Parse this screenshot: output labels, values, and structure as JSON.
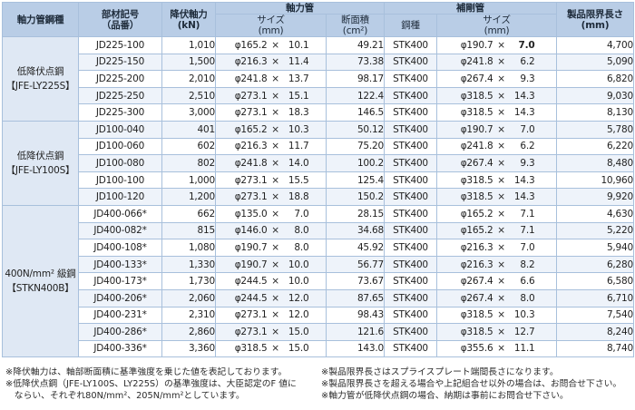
{
  "header": {
    "col_steel_type": "軸力管鋼種",
    "col_part_no": "部材記号",
    "col_part_no_sub": "（品番）",
    "col_yield": "降伏軸力",
    "col_yield_unit": "(kN)",
    "grp_axial": "軸力管",
    "grp_reinf": "補剛管",
    "col_axial_size": "サイズ",
    "col_axial_size_unit": "(mm)",
    "col_area": "断面積",
    "col_area_unit": "(cm²)",
    "col_reinf_steel": "鋼種",
    "col_reinf_size": "サイズ",
    "col_reinf_size_unit": "(mm)",
    "col_maxlen": "製品限界長さ",
    "col_maxlen_unit": "(mm)"
  },
  "groups": [
    {
      "label1": "低降伏点鋼",
      "label2": "【JFE-LY225S】",
      "rows": [
        {
          "part": "JD225-100",
          "yield": "1,010",
          "ax_d": "φ165.2",
          "ax_t": "10.1",
          "area": "49.21",
          "steel": "STK400",
          "rf_d": "φ190.7",
          "rf_t": "7.0",
          "rf_bold": true,
          "len": "4,700"
        },
        {
          "part": "JD225-150",
          "yield": "1,500",
          "ax_d": "φ216.3",
          "ax_t": "11.4",
          "area": "73.38",
          "steel": "STK400",
          "rf_d": "φ241.8",
          "rf_t": "6.2",
          "len": "5,090"
        },
        {
          "part": "JD225-200",
          "yield": "2,010",
          "ax_d": "φ241.8",
          "ax_t": "13.7",
          "area": "98.17",
          "steel": "STK400",
          "rf_d": "φ267.4",
          "rf_t": "9.3",
          "len": "6,820"
        },
        {
          "part": "JD225-250",
          "yield": "2,510",
          "ax_d": "φ273.1",
          "ax_t": "15.1",
          "area": "122.4",
          "steel": "STK400",
          "rf_d": "φ318.5",
          "rf_t": "14.3",
          "len": "9,030"
        },
        {
          "part": "JD225-300",
          "yield": "3,000",
          "ax_d": "φ273.1",
          "ax_t": "18.3",
          "area": "146.5",
          "steel": "STK400",
          "rf_d": "φ318.5",
          "rf_t": "14.3",
          "len": "8,130"
        }
      ]
    },
    {
      "label1": "低降伏点鋼",
      "label2": "【JFE-LY100S】",
      "rows": [
        {
          "part": "JD100-040",
          "yield": "401",
          "ax_d": "φ165.2",
          "ax_t": "10.3",
          "area": "50.12",
          "steel": "STK400",
          "rf_d": "φ190.7",
          "rf_t": "7.0",
          "len": "5,780"
        },
        {
          "part": "JD100-060",
          "yield": "602",
          "ax_d": "φ216.3",
          "ax_t": "11.7",
          "area": "75.20",
          "steel": "STK400",
          "rf_d": "φ241.8",
          "rf_t": "6.2",
          "len": "6,220"
        },
        {
          "part": "JD100-080",
          "yield": "802",
          "ax_d": "φ241.8",
          "ax_t": "14.0",
          "area": "100.2",
          "steel": "STK400",
          "rf_d": "φ267.4",
          "rf_t": "9.3",
          "len": "8,480"
        },
        {
          "part": "JD100-100",
          "yield": "1,000",
          "ax_d": "φ273.1",
          "ax_t": "15.5",
          "area": "125.4",
          "steel": "STK400",
          "rf_d": "φ318.5",
          "rf_t": "14.3",
          "len": "10,960"
        },
        {
          "part": "JD100-120",
          "yield": "1,200",
          "ax_d": "φ273.1",
          "ax_t": "18.8",
          "area": "150.2",
          "steel": "STK400",
          "rf_d": "φ318.5",
          "rf_t": "14.3",
          "len": "9,920"
        }
      ]
    },
    {
      "label1": "400N/mm² 級鋼",
      "label2": "【STKN400B】",
      "rows": [
        {
          "part": "JD400-066*",
          "yield": "662",
          "ax_d": "φ135.0",
          "ax_t": "7.0",
          "area": "28.15",
          "steel": "STK400",
          "rf_d": "φ165.2",
          "rf_t": "7.1",
          "len": "4,630"
        },
        {
          "part": "JD400-082*",
          "yield": "815",
          "ax_d": "φ146.0",
          "ax_t": "8.0",
          "area": "34.68",
          "steel": "STK400",
          "rf_d": "φ165.2",
          "rf_t": "7.1",
          "len": "5,220"
        },
        {
          "part": "JD400-108*",
          "yield": "1,080",
          "ax_d": "φ190.7",
          "ax_t": "8.0",
          "area": "45.92",
          "steel": "STK400",
          "rf_d": "φ216.3",
          "rf_t": "7.0",
          "len": "5,940"
        },
        {
          "part": "JD400-133*",
          "yield": "1,330",
          "ax_d": "φ190.7",
          "ax_t": "10.0",
          "area": "56.77",
          "steel": "STK400",
          "rf_d": "φ216.3",
          "rf_t": "8.2",
          "len": "6,280"
        },
        {
          "part": "JD400-173*",
          "yield": "1,730",
          "ax_d": "φ244.5",
          "ax_t": "10.0",
          "area": "73.67",
          "steel": "STK400",
          "rf_d": "φ267.4",
          "rf_t": "6.6",
          "len": "6,580"
        },
        {
          "part": "JD400-206*",
          "yield": "2,060",
          "ax_d": "φ244.5",
          "ax_t": "12.0",
          "area": "87.65",
          "steel": "STK400",
          "rf_d": "φ267.4",
          "rf_t": "8.0",
          "len": "6,710"
        },
        {
          "part": "JD400-231*",
          "yield": "2,310",
          "ax_d": "φ273.1",
          "ax_t": "12.0",
          "area": "98.43",
          "steel": "STK400",
          "rf_d": "φ318.5",
          "rf_t": "10.3",
          "len": "7,540"
        },
        {
          "part": "JD400-286*",
          "yield": "2,860",
          "ax_d": "φ273.1",
          "ax_t": "15.0",
          "area": "121.6",
          "steel": "STK400",
          "rf_d": "φ318.5",
          "rf_t": "12.7",
          "len": "8,240"
        },
        {
          "part": "JD400-336*",
          "yield": "3,360",
          "ax_d": "φ318.5",
          "ax_t": "15.0",
          "area": "143.0",
          "steel": "STK400",
          "rf_d": "φ355.6",
          "rf_t": "11.1",
          "len": "8,740"
        }
      ]
    }
  ],
  "times_sign": "×",
  "notes": {
    "left": [
      "※降伏軸力は、軸部断面積に基準強度を乗じた値を表記しております。",
      "※低降伏点鋼（JFE-LY100S、LY225S）の基準強度は、大臣認定のF 値に",
      "　ならい、それぞれ80N/mm²、205N/mm²としています。"
    ],
    "right": [
      "※製品限界長さはスプライスプレート端間長さになります。",
      "※製品限界長さを超える場合や上記組合せ以外の場合は、お問合せ下さい。",
      "※軸力管が低降伏点鋼の場合、納期は事前にお問合せ下さい。"
    ]
  }
}
